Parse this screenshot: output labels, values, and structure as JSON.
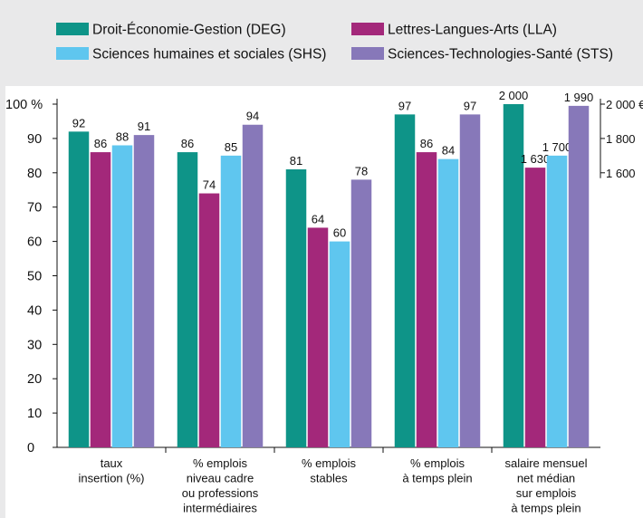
{
  "chart_data": {
    "type": "bar",
    "categories": [
      [
        "taux",
        "insertion (%)"
      ],
      [
        "% emplois",
        "niveau cadre",
        "ou professions",
        "intermédiaires"
      ],
      [
        "% emplois",
        "stables"
      ],
      [
        "% emplois",
        "à temps plein"
      ],
      [
        "salaire mensuel",
        "net médian",
        "sur emplois",
        "à temps plein"
      ]
    ],
    "series": [
      {
        "name": "Droit-Économie-Gestion (DEG)",
        "color": "#0e9488",
        "values": [
          92,
          86,
          81,
          97,
          2000
        ],
        "labels": [
          "92",
          "86",
          "81",
          "97",
          "2 000"
        ]
      },
      {
        "name": "Lettres-Langues-Arts (LLA)",
        "color": "#a3287a",
        "values": [
          86,
          74,
          64,
          86,
          1630
        ],
        "labels": [
          "86",
          "74",
          "64",
          "86",
          "1 630"
        ]
      },
      {
        "name": "Sciences humaines et sociales (SHS)",
        "color": "#5fc6ef",
        "values": [
          88,
          85,
          60,
          84,
          1700
        ],
        "labels": [
          "88",
          "85",
          "60",
          "84",
          "1 700"
        ]
      },
      {
        "name": "Sciences-Technologies-Santé (STS)",
        "color": "#8778b9",
        "values": [
          91,
          94,
          78,
          97,
          1990
        ],
        "labels": [
          "91",
          "94",
          "78",
          "97",
          "1 990"
        ]
      }
    ],
    "y_left": {
      "ylim": [
        0,
        100
      ],
      "ticks": [
        0,
        10,
        20,
        30,
        40,
        50,
        60,
        70,
        80,
        90,
        100
      ],
      "tick_labels": [
        "0",
        "10",
        "20",
        "30",
        "40",
        "50",
        "60",
        "70",
        "80",
        "90",
        "100 %"
      ]
    },
    "y_right": {
      "applies_to_category": 4,
      "value_at_left_100": 2000,
      "units_per_left_unit": 20,
      "ticks": [
        1600,
        1800,
        2000
      ],
      "tick_labels": [
        "1 600",
        "1 800",
        "2 000 €"
      ]
    },
    "grid": false,
    "legend_position": "top"
  }
}
